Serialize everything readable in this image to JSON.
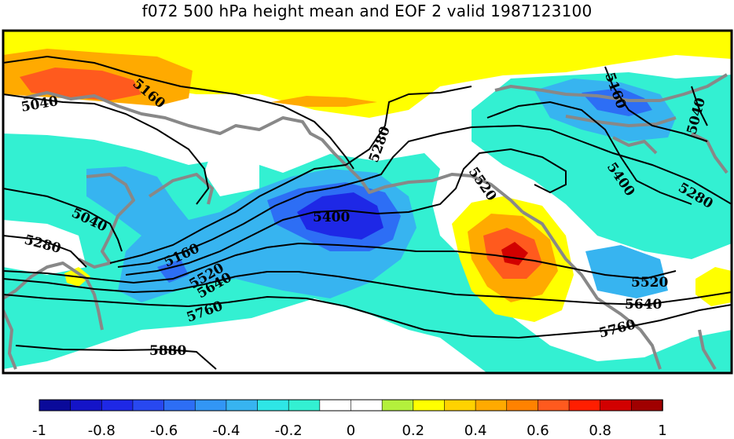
{
  "title": "f072 500 hPa height mean and EOF 2 valid 1987123100",
  "contour_labels": [
    "5040",
    "5160",
    "5280",
    "5400",
    "5520",
    "5640",
    "5760",
    "5880"
  ],
  "colorbar": {
    "colors": [
      "#0a0a9a",
      "#1414c8",
      "#1e28e6",
      "#2848f0",
      "#2d6ef5",
      "#3296f5",
      "#37b4f0",
      "#2ee6e6",
      "#33f0d2",
      "#ffffff",
      "#ffffff",
      "#b4f03c",
      "#ffff00",
      "#ffd200",
      "#ffaa00",
      "#ff8200",
      "#ff5a1e",
      "#ff1e00",
      "#d20000",
      "#a00000"
    ],
    "tick_labels": [
      "-1",
      "-0.8",
      "-0.6",
      "-0.4",
      "-0.2",
      "0",
      "0.2",
      "0.4",
      "0.6",
      "0.8",
      "1"
    ]
  }
}
